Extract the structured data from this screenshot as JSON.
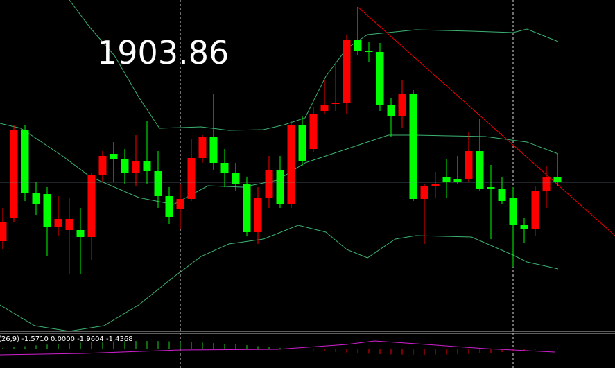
{
  "chart_data": {
    "type": "candlestick",
    "price_label": "1903.86",
    "price_line": 1903.86,
    "indicator_label": "(26,9) -1.5710 0.0000 -1.9604 -1.4368",
    "ylim": [
      1893.1,
      1917
    ],
    "up_color": "#ff0000",
    "down_color": "#00ff00",
    "open": [
      1899.6,
      1901.25,
      1907.6,
      1903.1,
      1903,
      1900.6,
      1900.4,
      1900.4,
      1899.9,
      1904.35,
      1905.9,
      1905.5,
      1904.5,
      1905.4,
      1904.65,
      1902.85,
      1901.9,
      1902.65,
      1905.6,
      1907.1,
      1905.25,
      1904.5,
      1903.75,
      1900.25,
      1902.7,
      1904.75,
      1902.25,
      1908,
      1906.25,
      1909,
      1909.5,
      1909.6,
      1914.1,
      1913.35,
      1913.25,
      1909.4,
      1908.65,
      1910.25,
      1902.65,
      1903.6,
      1904.25,
      1904.1,
      1904.1,
      1906.1,
      1903.5,
      1903.4,
      1902.75,
      1900.75,
      1900.5,
      1903.25,
      1904.25
    ],
    "high": [
      1902,
      1908,
      1908,
      1903.9,
      1903.5,
      1902.85,
      1902.75,
      1902,
      1904.5,
      1906.1,
      1906.75,
      1906.25,
      1907.25,
      1908.25,
      1906.1,
      1903.5,
      1903.75,
      1907,
      1907.25,
      1910.25,
      1906.25,
      1905.25,
      1904.25,
      1903.5,
      1905.75,
      1905.75,
      1908.25,
      1908.6,
      1909.25,
      1911.25,
      1912.5,
      1914.5,
      1916.5,
      1914,
      1913.9,
      1909.9,
      1911.25,
      1910.5,
      1903.75,
      1904.6,
      1905.5,
      1905.75,
      1907.5,
      1908.4,
      1905.1,
      1904.25,
      1903.5,
      1901.25,
      1903.6,
      1905,
      1905.9
    ],
    "low": [
      1899,
      1901,
      1902.5,
      1901.5,
      1898.5,
      1900,
      1897.25,
      1897.25,
      1898.25,
      1903.9,
      1903.9,
      1903.75,
      1903.6,
      1903.75,
      1902,
      1900.85,
      1900.5,
      1902.5,
      1905.25,
      1904.75,
      1903.5,
      1903.25,
      1900,
      1899.4,
      1902,
      1902,
      1902,
      1905,
      1906,
      1908.75,
      1909,
      1908.75,
      1913,
      1912.5,
      1909,
      1907.1,
      1907.75,
      1902.5,
      1899.4,
      1902.75,
      1902.75,
      1903.75,
      1903.9,
      1903.25,
      1899.75,
      1902.25,
      1897.75,
      1899.5,
      1900,
      1902,
      1903.6
    ],
    "close": [
      1901,
      1907.6,
      1903.1,
      1902.25,
      1900.6,
      1901.2,
      1901.2,
      1899.9,
      1904.35,
      1905.75,
      1905.5,
      1904.5,
      1905.4,
      1904.65,
      1902.85,
      1901.35,
      1902.65,
      1905.6,
      1907.1,
      1905.25,
      1904.5,
      1903.75,
      1900.25,
      1902.7,
      1904.75,
      1902.25,
      1908,
      1905.4,
      1908.75,
      1909.4,
      1909.6,
      1914.1,
      1913.35,
      1913.25,
      1909.4,
      1908.65,
      1910.25,
      1902.65,
      1903.6,
      1903.75,
      1903.85,
      1903.9,
      1906.1,
      1903.4,
      1903.4,
      1902.5,
      1900.75,
      1900.5,
      1903.25,
      1904.25,
      1903.85
    ]
  }
}
